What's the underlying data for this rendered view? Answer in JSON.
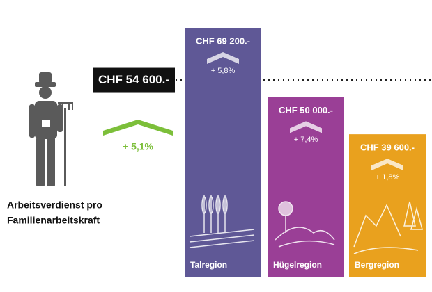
{
  "chart_data": {
    "type": "bar",
    "categories": [
      "Talregion",
      "Hügelregion",
      "Bergregion"
    ],
    "values": [
      69200,
      50000,
      39600
    ],
    "value_labels": [
      "CHF 69 200.-",
      "CHF 50 000.-",
      "CHF 39 600.-"
    ],
    "changes": [
      5.8,
      7.4,
      1.8
    ],
    "change_labels": [
      "+ 5,8%",
      "+ 7,4%",
      "+ 1,8%"
    ],
    "colors": [
      "#5f5896",
      "#9a3f96",
      "#e9a11e"
    ],
    "reference": {
      "value": 54600,
      "label": "CHF 54 600.-",
      "change": 5.1,
      "change_label": "+ 5,1%",
      "color": "#7cbf3a",
      "caption": [
        "Arbeitsverdienst pro",
        "Familienarbeitskraft"
      ]
    }
  }
}
